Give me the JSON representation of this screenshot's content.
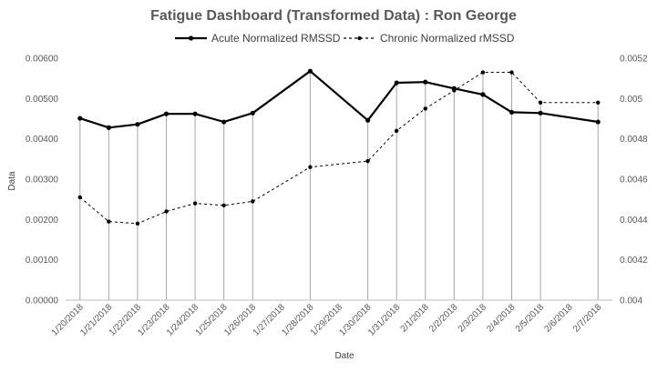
{
  "chart_data": {
    "type": "line",
    "title": "Fatigue Dashboard (Transformed Data) : Ron George",
    "xlabel": "Date",
    "ylabel": "Data",
    "categories": [
      "1/20/2018",
      "1/21/2018",
      "1/22/2018",
      "1/23/2018",
      "1/24/2018",
      "1/25/2018",
      "1/26/2018",
      "1/27/2018",
      "1/28/2018",
      "1/29/2018",
      "1/30/2018",
      "1/31/2018",
      "2/1/2018",
      "2/2/2018",
      "2/3/2018",
      "2/4/2018",
      "2/5/2018",
      "2/6/2018",
      "2/7/2018"
    ],
    "y_left": {
      "min": 0,
      "max": 0.006,
      "ticks": [
        "0.00000",
        "0.00100",
        "0.00200",
        "0.00300",
        "0.00400",
        "0.00500",
        "0.00600"
      ]
    },
    "y_right": {
      "min": 0.004,
      "max": 0.0052,
      "ticks": [
        "0.004",
        "0.0042",
        "0.0044",
        "0.0046",
        "0.0048",
        "0.005",
        "0.0052"
      ]
    },
    "series": [
      {
        "name": "Acute Normalized RMSSD",
        "axis": "left",
        "style": "solid",
        "color": "#000000",
        "values": [
          0.00451,
          0.00428,
          0.00436,
          0.00462,
          0.00462,
          0.00442,
          0.00464,
          null,
          0.00568,
          null,
          0.00446,
          0.00539,
          0.00541,
          0.00525,
          0.0051,
          0.00466,
          0.00464,
          null,
          0.00442
        ]
      },
      {
        "name": "Chronic Normalized rMSSD",
        "axis": "right",
        "style": "dashed",
        "color": "#000000",
        "values": [
          0.00451,
          0.00439,
          0.00438,
          0.00444,
          0.00448,
          0.00447,
          0.00449,
          null,
          0.00466,
          null,
          0.00469,
          0.00484,
          0.00495,
          0.00504,
          0.00513,
          0.00513,
          0.00498,
          null,
          0.00498
        ]
      }
    ],
    "grid": false,
    "drop_lines": true,
    "legend_position": "top"
  }
}
